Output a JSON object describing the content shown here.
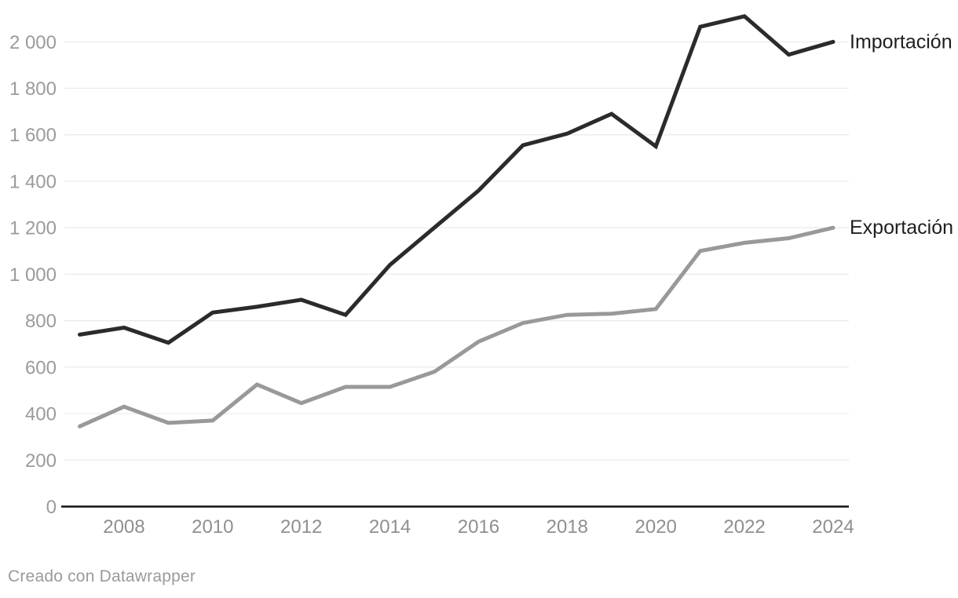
{
  "chart_data": {
    "type": "line",
    "title": "",
    "xlabel": "",
    "ylabel": "",
    "x": [
      2007,
      2008,
      2009,
      2010,
      2011,
      2012,
      2013,
      2014,
      2015,
      2016,
      2017,
      2018,
      2019,
      2020,
      2021,
      2022,
      2023,
      2024
    ],
    "series": [
      {
        "name": "Importación",
        "color": "#2b2b2b",
        "values": [
          740,
          770,
          705,
          835,
          860,
          890,
          825,
          1040,
          1200,
          1360,
          1555,
          1605,
          1690,
          1550,
          2065,
          2110,
          1945,
          2000
        ]
      },
      {
        "name": "Exportación",
        "color": "#999999",
        "values": [
          345,
          430,
          360,
          370,
          525,
          445,
          515,
          515,
          580,
          710,
          790,
          825,
          830,
          850,
          1100,
          1135,
          1155,
          1200
        ]
      }
    ],
    "y_ticks": [
      {
        "value": 0,
        "label": "0"
      },
      {
        "value": 200,
        "label": "200"
      },
      {
        "value": 400,
        "label": "400"
      },
      {
        "value": 600,
        "label": "600"
      },
      {
        "value": 800,
        "label": "800"
      },
      {
        "value": 1000,
        "label": "1 000"
      },
      {
        "value": 1200,
        "label": "1 200"
      },
      {
        "value": 1400,
        "label": "1 400"
      },
      {
        "value": 1600,
        "label": "1 600"
      },
      {
        "value": 1800,
        "label": "1 800"
      },
      {
        "value": 2000,
        "label": "2 000"
      }
    ],
    "x_ticks": [
      {
        "value": 2008,
        "label": "2008"
      },
      {
        "value": 2010,
        "label": "2010"
      },
      {
        "value": 2012,
        "label": "2012"
      },
      {
        "value": 2014,
        "label": "2014"
      },
      {
        "value": 2016,
        "label": "2016"
      },
      {
        "value": 2018,
        "label": "2018"
      },
      {
        "value": 2020,
        "label": "2020"
      },
      {
        "value": 2022,
        "label": "2022"
      },
      {
        "value": 2024,
        "label": "2024"
      }
    ],
    "ylim": [
      0,
      2130
    ],
    "xlim": [
      2007,
      2024
    ],
    "grid": "horizontal",
    "legend_position": "direct-right",
    "colors": {
      "grid_line": "#e9e9e9",
      "axis_line": "#101010",
      "tick_text": "#9b9b9b",
      "label_text": "#1f1f1f"
    }
  },
  "footer": {
    "credit": "Creado con Datawrapper"
  }
}
